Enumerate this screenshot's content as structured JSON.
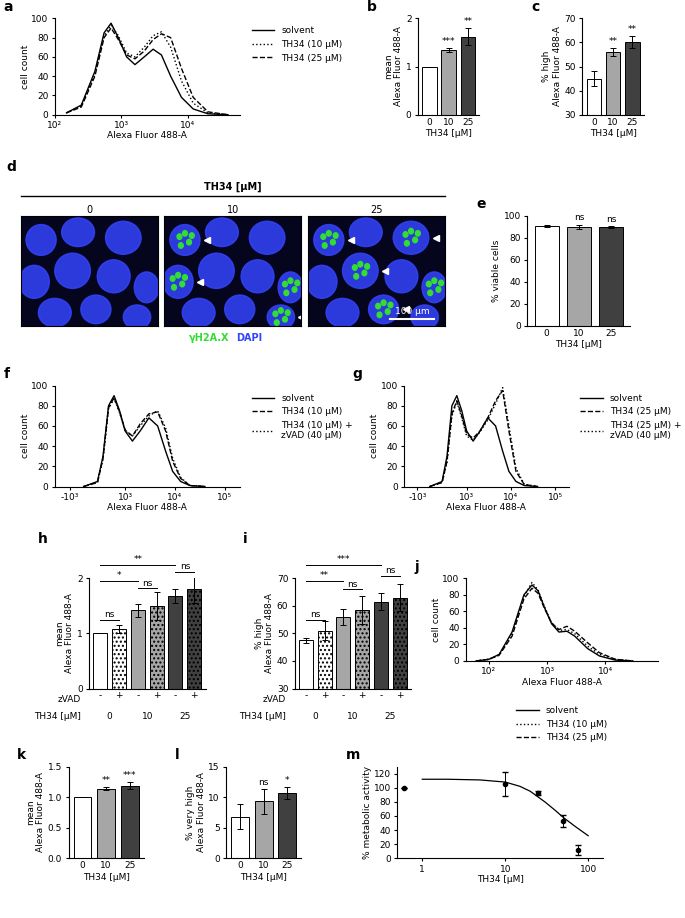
{
  "chart_data": [
    {
      "title": "a",
      "type": "line",
      "xlabel": "Alexa Fluor 488-A",
      "ylabel": "cell count",
      "log": "x",
      "xlim": [
        100,
        60000
      ],
      "xticks": [
        {
          "value": 100,
          "label": "10²"
        },
        {
          "value": 1000,
          "label": "10³"
        },
        {
          "value": 10000,
          "label": "10⁴"
        }
      ],
      "ylim": [
        0,
        100
      ],
      "yticks": [
        0,
        20,
        40,
        60,
        80,
        100
      ],
      "legend": "upper left",
      "x": [
        150,
        250,
        400,
        550,
        700,
        900,
        1200,
        1600,
        2200,
        3000,
        4000,
        5500,
        8000,
        12000,
        20000,
        40000
      ],
      "series": [
        {
          "name": "solvent",
          "color": "#000000",
          "line_style": "solid",
          "values": [
            2,
            10,
            45,
            85,
            95,
            80,
            60,
            52,
            60,
            68,
            62,
            40,
            18,
            6,
            1,
            0
          ]
        },
        {
          "name": "TH34 (10 µM)",
          "color": "#000000",
          "line_style": "dotted",
          "values": [
            2,
            9,
            42,
            82,
            93,
            82,
            64,
            60,
            70,
            82,
            86,
            70,
            35,
            12,
            2,
            0
          ]
        },
        {
          "name": "TH34 (25 µM)",
          "color": "#000000",
          "line_style": "dashed",
          "values": [
            2,
            8,
            40,
            80,
            90,
            78,
            62,
            58,
            66,
            78,
            84,
            80,
            48,
            18,
            3,
            0
          ]
        }
      ]
    },
    {
      "title": "b",
      "type": "bar",
      "xlabel": "TH34 [µM]",
      "ylabel": "mean\nAlexa Fluor 488-A",
      "categories": [
        "0",
        "10",
        "25"
      ],
      "values": [
        1,
        1.35,
        1.62
      ],
      "errors": [
        0,
        0.04,
        0.18
      ],
      "colors": [
        "#ffffff",
        "#a6a6a6",
        "#404040"
      ],
      "annotations": [
        null,
        "***",
        "**"
      ],
      "ylim": [
        0,
        2
      ],
      "yticks": [
        0,
        1,
        2
      ]
    },
    {
      "title": "c",
      "type": "bar",
      "xlabel": "TH34 [µM]",
      "ylabel": "% high\nAlexa Fluor 488-A",
      "categories": [
        "0",
        "10",
        "25"
      ],
      "values": [
        45,
        56,
        60
      ],
      "errors": [
        3,
        1.5,
        2.5
      ],
      "colors": [
        "#ffffff",
        "#a6a6a6",
        "#404040"
      ],
      "annotations": [
        null,
        "**",
        "**"
      ],
      "ylim": [
        30,
        70
      ],
      "yticks": [
        30,
        40,
        50,
        60,
        70
      ]
    },
    {
      "title": "d",
      "type": "image",
      "header": "TH34 [µM]",
      "panels": [
        "0",
        "10",
        "25"
      ],
      "scale_bar": "100 µm",
      "channels": [
        {
          "name": "γH2A.X",
          "color": "#33dd33"
        },
        {
          "name": "DAPI",
          "color": "#3344ff"
        }
      ]
    },
    {
      "title": "e",
      "type": "bar",
      "xlabel": "TH34 [µM]",
      "ylabel": "% viable cells",
      "categories": [
        "0",
        "10",
        "25"
      ],
      "values": [
        91,
        90,
        90
      ],
      "errors": [
        1,
        2,
        1
      ],
      "colors": [
        "#ffffff",
        "#a6a6a6",
        "#404040"
      ],
      "annotations": [
        null,
        "ns",
        "ns"
      ],
      "ylim": [
        0,
        100
      ],
      "yticks": [
        0,
        20,
        40,
        60,
        80,
        100
      ]
    },
    {
      "title": "f",
      "type": "line",
      "xlabel": "Alexa Fluor 488-A",
      "ylabel": "cell count",
      "log": "x",
      "xlim": [
        -2000,
        200000
      ],
      "xticks": [
        {
          "value": -1000,
          "label": "-10³"
        },
        {
          "value": 1000,
          "label": "10³"
        },
        {
          "value": 10000,
          "label": "10⁴"
        },
        {
          "value": 100000,
          "label": "10⁵"
        }
      ],
      "ylim": [
        0,
        100
      ],
      "yticks": [
        0,
        20,
        40,
        60,
        80,
        100
      ],
      "legend": "upper left",
      "x": [
        -500,
        0,
        200,
        400,
        600,
        800,
        1000,
        1400,
        2000,
        3000,
        4500,
        6500,
        9000,
        13000,
        20000,
        40000
      ],
      "series": [
        {
          "name": "solvent",
          "color": "#000000",
          "line_style": "solid",
          "values": [
            0,
            5,
            30,
            80,
            90,
            75,
            55,
            45,
            55,
            68,
            60,
            35,
            15,
            5,
            1,
            0
          ]
        },
        {
          "name": "TH34 (10 µM)",
          "color": "#000000",
          "line_style": "dashed",
          "values": [
            0,
            4,
            28,
            78,
            88,
            74,
            56,
            50,
            62,
            72,
            74,
            55,
            25,
            8,
            1,
            0
          ]
        },
        {
          "name": "TH34 (10 µM) +\nzVAD (40 µM)",
          "color": "#000000",
          "line_style": "dotted",
          "values": [
            0,
            4,
            27,
            77,
            87,
            73,
            55,
            50,
            60,
            70,
            75,
            58,
            28,
            9,
            1,
            0
          ]
        }
      ]
    },
    {
      "title": "g",
      "type": "line",
      "xlabel": "Alexa Fluor 488-A",
      "ylabel": "cell count",
      "log": "x",
      "xlim": [
        -2000,
        200000
      ],
      "xticks": [
        {
          "value": -1000,
          "label": "-10³"
        },
        {
          "value": 1000,
          "label": "10³"
        },
        {
          "value": 10000,
          "label": "10⁴"
        },
        {
          "value": 100000,
          "label": "10⁵"
        }
      ],
      "ylim": [
        0,
        100
      ],
      "yticks": [
        0,
        20,
        40,
        60,
        80,
        100
      ],
      "legend": "upper left",
      "x": [
        -500,
        0,
        200,
        400,
        600,
        800,
        1000,
        1400,
        2000,
        3000,
        4500,
        6500,
        9000,
        13000,
        20000,
        40000
      ],
      "series": [
        {
          "name": "solvent",
          "color": "#000000",
          "line_style": "solid",
          "values": [
            0,
            5,
            30,
            80,
            90,
            75,
            55,
            45,
            55,
            68,
            60,
            35,
            15,
            5,
            1,
            0
          ]
        },
        {
          "name": "TH34 (25 µM)",
          "color": "#000000",
          "line_style": "dashed",
          "values": [
            0,
            4,
            25,
            72,
            85,
            70,
            52,
            48,
            55,
            68,
            85,
            95,
            55,
            15,
            2,
            0
          ]
        },
        {
          "name": "TH34 (25 µM) +\nzVAD (40 µM)",
          "color": "#000000",
          "line_style": "dotted",
          "values": [
            0,
            4,
            24,
            70,
            84,
            68,
            50,
            46,
            54,
            66,
            82,
            98,
            60,
            18,
            2,
            0
          ]
        }
      ]
    },
    {
      "title": "h",
      "type": "bar",
      "xlabel": "TH34 [µM]",
      "category_title": "zVAD",
      "ylabel": "mean\nAlexa Fluor 488-A",
      "categories": [
        "-",
        "+",
        "-",
        "+",
        "-",
        "+"
      ],
      "groups": [
        "0",
        "10",
        "25"
      ],
      "values": [
        1,
        1.08,
        1.42,
        1.5,
        1.68,
        1.8
      ],
      "errors": [
        0,
        0.08,
        0.12,
        0.25,
        0.12,
        0.25
      ],
      "colors": [
        "#ffffff",
        "#ffffff",
        "#a6a6a6",
        "#a6a6a6",
        "#404040",
        "#404040"
      ],
      "brackets": [
        {
          "from": 0,
          "to": 1,
          "y": 1.25,
          "label": "ns"
        },
        {
          "from": 2,
          "to": 3,
          "y": 1.82,
          "label": "ns"
        },
        {
          "from": 4,
          "to": 5,
          "y": 2.12,
          "label": "ns"
        },
        {
          "from": 0,
          "to": 2,
          "y": 1.95,
          "label": "*"
        },
        {
          "from": 0,
          "to": 4,
          "y": 2.25,
          "label": "**"
        }
      ],
      "ylim": [
        0,
        2
      ],
      "yticks": [
        0,
        1,
        2
      ]
    },
    {
      "title": "i",
      "type": "bar",
      "xlabel": "TH34 [µM]",
      "category_title": "zVAD",
      "ylabel": "% high\nAlexa Fluor 488-A",
      "categories": [
        "-",
        "+",
        "-",
        "+",
        "-",
        "+"
      ],
      "groups": [
        "0",
        "10",
        "25"
      ],
      "values": [
        47.5,
        51,
        56,
        58.5,
        61.5,
        63
      ],
      "errors": [
        1,
        3.5,
        3,
        5,
        3,
        5
      ],
      "colors": [
        "#ffffff",
        "#ffffff",
        "#a6a6a6",
        "#a6a6a6",
        "#404040",
        "#404040"
      ],
      "brackets": [
        {
          "from": 0,
          "to": 1,
          "y": 55,
          "label": "ns"
        },
        {
          "from": 2,
          "to": 3,
          "y": 66,
          "label": "ns"
        },
        {
          "from": 4,
          "to": 5,
          "y": 71,
          "label": "ns"
        },
        {
          "from": 0,
          "to": 2,
          "y": 69,
          "label": "**"
        },
        {
          "from": 0,
          "to": 4,
          "y": 75,
          "label": "***"
        }
      ],
      "ylim": [
        30,
        70
      ],
      "yticks": [
        30,
        40,
        50,
        60,
        70
      ]
    },
    {
      "title": "j",
      "type": "line",
      "xlabel": "Alexa Fluor 488-A",
      "ylabel": "cell count",
      "log": "x",
      "xlim": [
        40,
        80000
      ],
      "xticks": [
        {
          "value": 100,
          "label": "10²"
        },
        {
          "value": 1000,
          "label": "10³"
        },
        {
          "value": 10000,
          "label": "10⁴"
        }
      ],
      "ylim": [
        0,
        100
      ],
      "yticks": [
        0,
        20,
        40,
        60,
        80,
        100
      ],
      "legend": "upper center",
      "x": [
        60,
        100,
        150,
        250,
        400,
        550,
        700,
        900,
        1200,
        1600,
        2200,
        3000,
        5000,
        8000,
        15000,
        30000
      ],
      "series": [
        {
          "name": "solvent",
          "color": "#000000",
          "line_style": "solid",
          "values": [
            0,
            2,
            8,
            35,
            80,
            92,
            85,
            65,
            45,
            35,
            36,
            30,
            15,
            6,
            1,
            0
          ]
        },
        {
          "name": "TH34 (10 µM)",
          "color": "#000000",
          "line_style": "dotted",
          "values": [
            0,
            2,
            7,
            33,
            78,
            95,
            86,
            66,
            46,
            37,
            38,
            33,
            18,
            8,
            2,
            0
          ]
        },
        {
          "name": "TH34 (25 µM)",
          "color": "#000000",
          "line_style": "dashed",
          "values": [
            0,
            2,
            7,
            30,
            75,
            88,
            82,
            64,
            46,
            38,
            42,
            36,
            22,
            10,
            2,
            0
          ]
        }
      ]
    },
    {
      "title": "k",
      "type": "bar",
      "xlabel": "TH34 [µM]",
      "ylabel": "mean\nAlexa Fluor 488-A",
      "categories": [
        "0",
        "10",
        "25"
      ],
      "values": [
        1,
        1.14,
        1.19
      ],
      "errors": [
        0,
        0.03,
        0.05
      ],
      "colors": [
        "#ffffff",
        "#a6a6a6",
        "#404040"
      ],
      "annotations": [
        null,
        "**",
        "***"
      ],
      "ylim": [
        0,
        1.5
      ],
      "yticks": [
        {
          "value": 0,
          "label": "0.0"
        },
        {
          "value": 0.5,
          "label": "0.5"
        },
        {
          "value": 1,
          "label": "1.0"
        },
        {
          "value": 1.5,
          "label": "1.5"
        }
      ]
    },
    {
      "title": "l",
      "type": "bar",
      "xlabel": "TH34 [µM]",
      "ylabel": "% very high\nAlexa Fluor 488-A",
      "categories": [
        "0",
        "10",
        "25"
      ],
      "values": [
        6.8,
        9.3,
        10.7
      ],
      "errors": [
        2,
        2,
        1
      ],
      "colors": [
        "#ffffff",
        "#a6a6a6",
        "#404040"
      ],
      "annotations": [
        null,
        "ns",
        "*"
      ],
      "ylim": [
        0,
        15
      ],
      "yticks": [
        0,
        5,
        10,
        15
      ]
    },
    {
      "title": "m",
      "type": "scatter",
      "xlabel": "TH34 [µM]",
      "ylabel": "% metabolic activity",
      "log": "x",
      "x": [
        0.6,
        10,
        25,
        50,
        75
      ],
      "values": [
        100,
        105,
        92,
        53,
        12
      ],
      "errors": [
        0,
        17,
        3,
        8,
        7
      ],
      "color": "#000000",
      "fit": {
        "x": [
          1,
          2,
          5,
          10,
          15,
          20,
          30,
          40,
          50,
          70,
          100
        ],
        "values": [
          112,
          112,
          111,
          108,
          102,
          95,
          80,
          68,
          58,
          45,
          32
        ]
      },
      "xlim": [
        0.5,
        150
      ],
      "xticks": [
        1,
        10,
        100
      ],
      "ylim": [
        0,
        130
      ],
      "yticks": [
        0,
        20,
        40,
        60,
        80,
        100,
        120
      ]
    }
  ]
}
